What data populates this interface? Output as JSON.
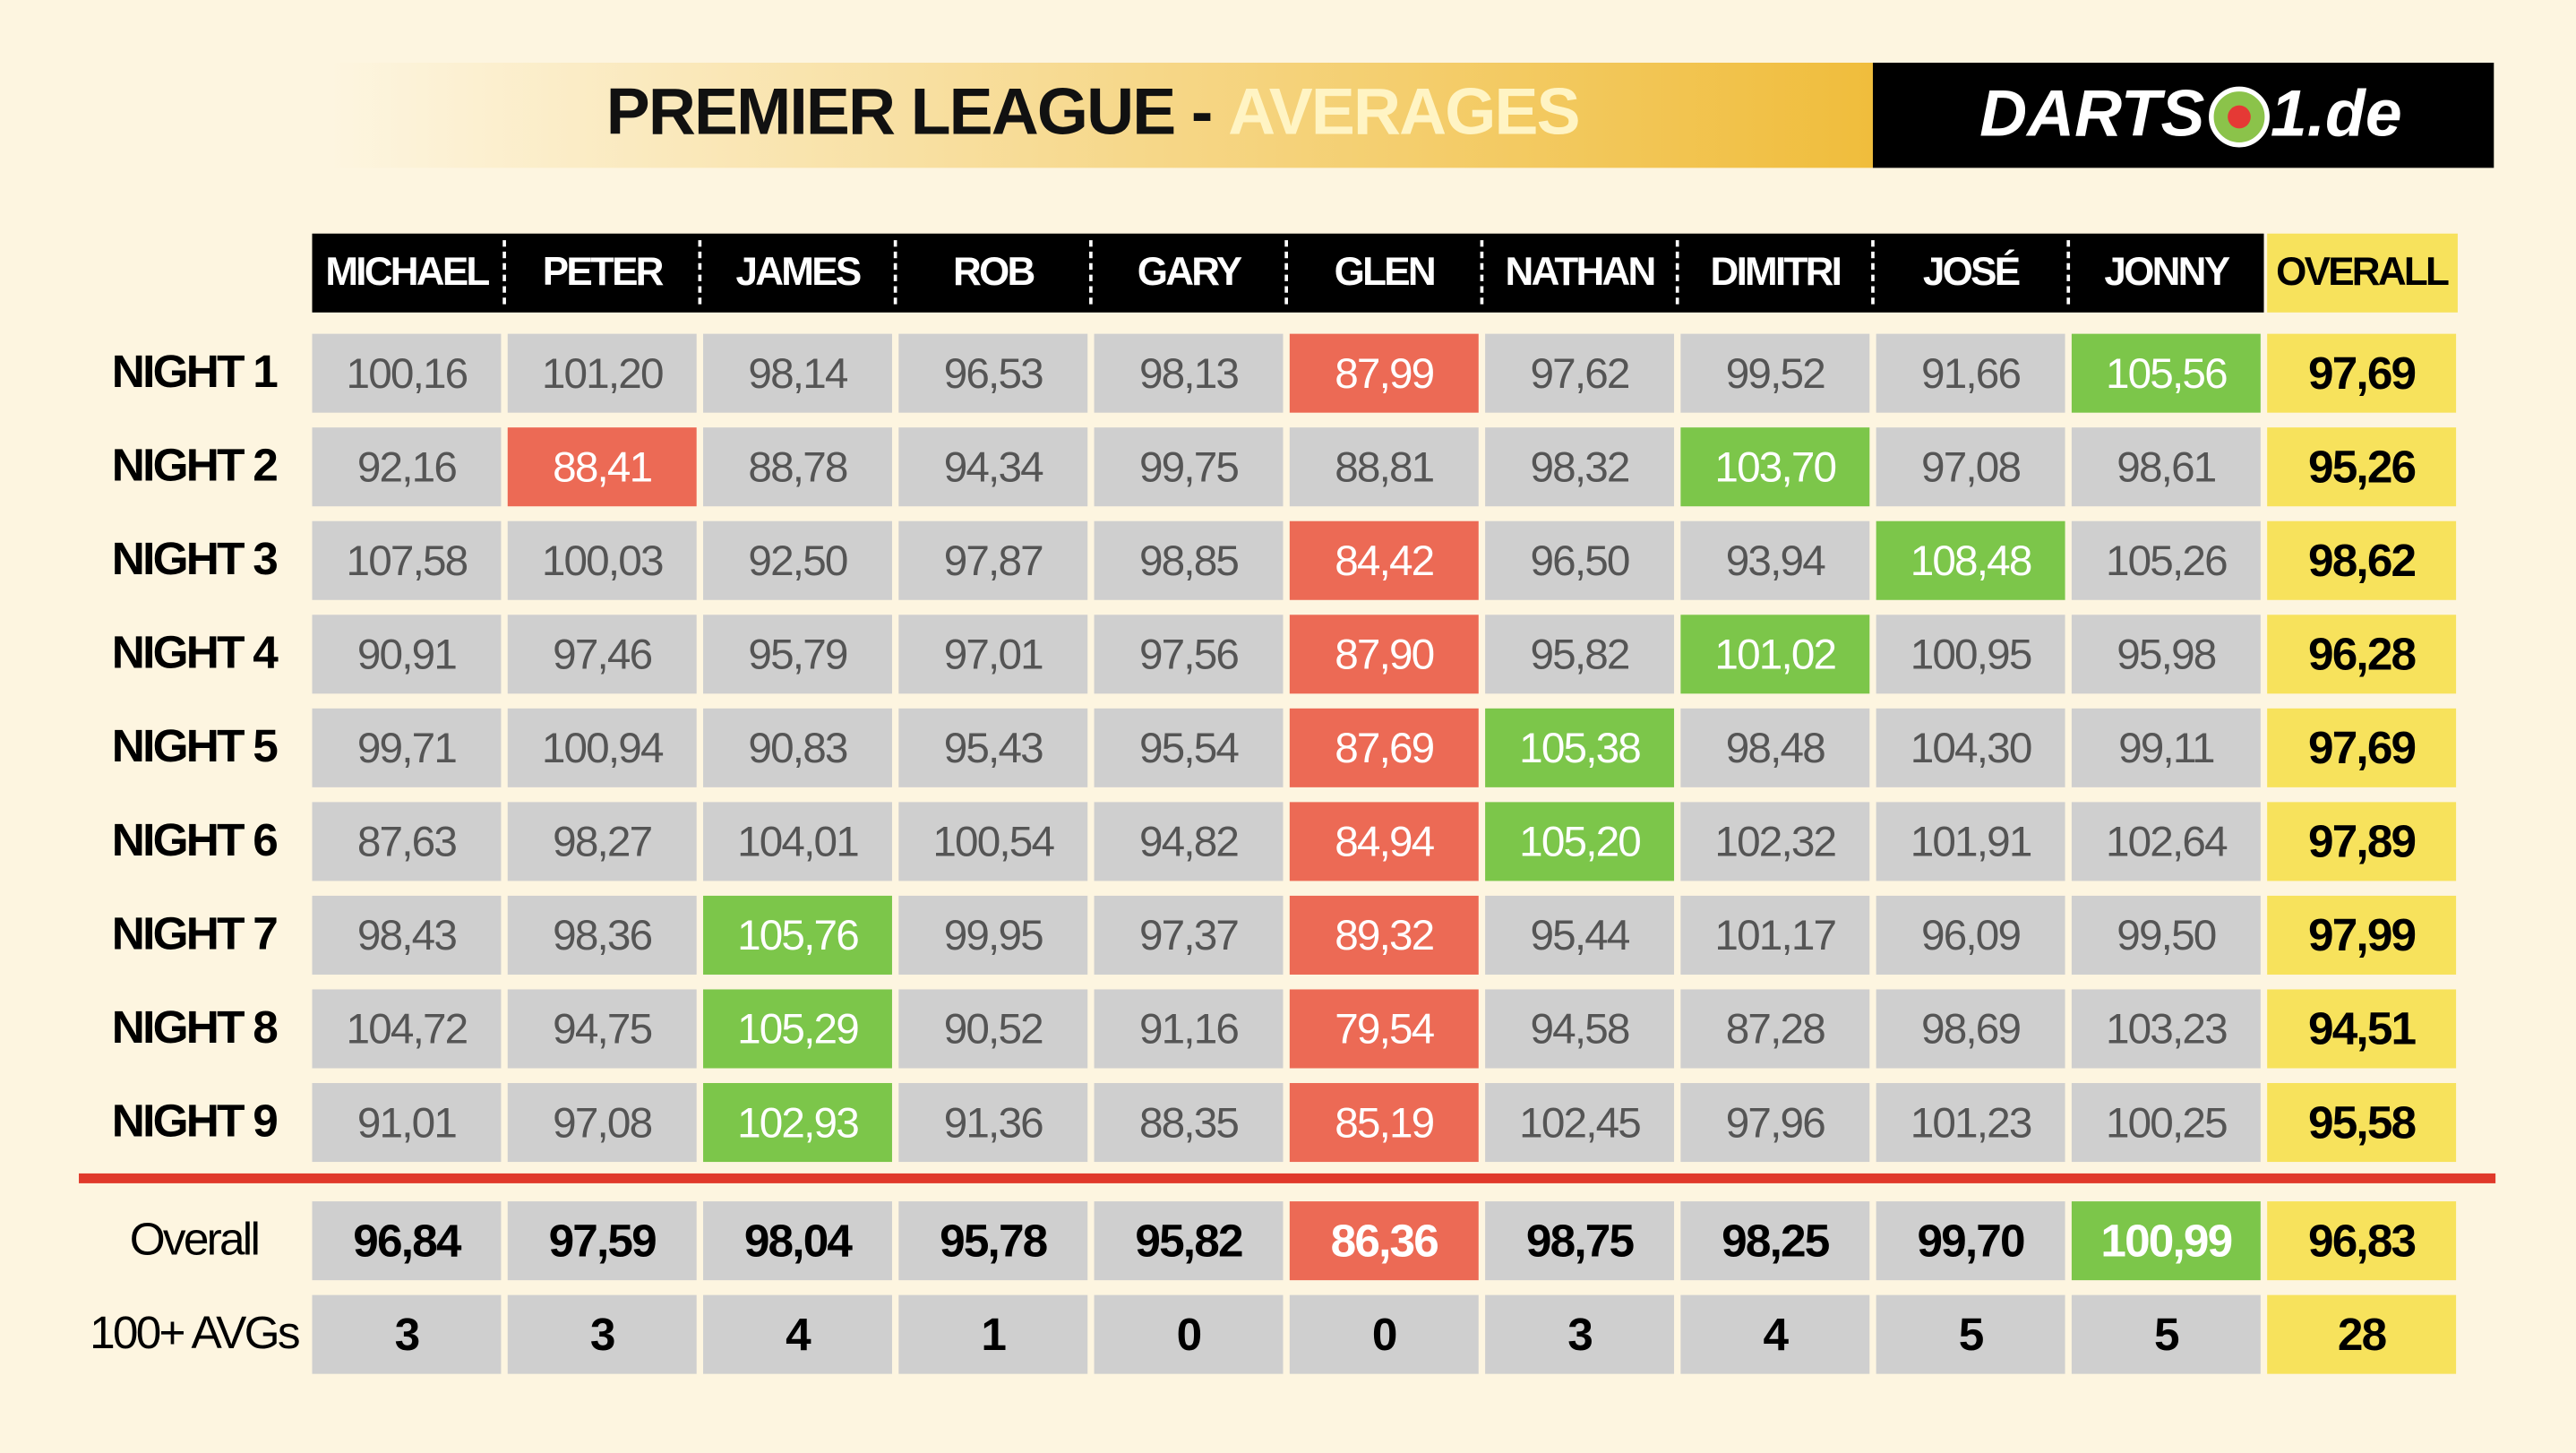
{
  "header": {
    "title": "PREMIER LEAGUE - ",
    "title_highlight": "AVERAGES",
    "logo_left": "DARTS",
    "logo_right": "1.de"
  },
  "table": {
    "columns": [
      "MICHAEL",
      "PETER",
      "JAMES",
      "ROB",
      "GARY",
      "GLEN",
      "NATHAN",
      "DIMITRI",
      "JOSÉ",
      "JONNY",
      "OVERALL"
    ],
    "colors": {
      "cell": "#cfcfcf",
      "best": "#7cc64a",
      "worst": "#ec6a55",
      "overall": "#f7e25c"
    },
    "rows": [
      {
        "label": "NIGHT 1",
        "cells": [
          "100,16",
          "101,20",
          "98,14",
          "96,53",
          "98,13",
          "87,99",
          "97,62",
          "99,52",
          "91,66",
          "105,56",
          "97,69"
        ],
        "worst": 5,
        "best": 9
      },
      {
        "label": "NIGHT 2",
        "cells": [
          "92,16",
          "88,41",
          "88,78",
          "94,34",
          "99,75",
          "88,81",
          "98,32",
          "103,70",
          "97,08",
          "98,61",
          "95,26"
        ],
        "worst": 1,
        "best": 7
      },
      {
        "label": "NIGHT 3",
        "cells": [
          "107,58",
          "100,03",
          "92,50",
          "97,87",
          "98,85",
          "84,42",
          "96,50",
          "93,94",
          "108,48",
          "105,26",
          "98,62"
        ],
        "worst": 5,
        "best": 8
      },
      {
        "label": "NIGHT 4",
        "cells": [
          "90,91",
          "97,46",
          "95,79",
          "97,01",
          "97,56",
          "87,90",
          "95,82",
          "101,02",
          "100,95",
          "95,98",
          "96,28"
        ],
        "worst": 5,
        "best": 7
      },
      {
        "label": "NIGHT 5",
        "cells": [
          "99,71",
          "100,94",
          "90,83",
          "95,43",
          "95,54",
          "87,69",
          "105,38",
          "98,48",
          "104,30",
          "99,11",
          "97,69"
        ],
        "worst": 5,
        "best": 6
      },
      {
        "label": "NIGHT 6",
        "cells": [
          "87,63",
          "98,27",
          "104,01",
          "100,54",
          "94,82",
          "84,94",
          "105,20",
          "102,32",
          "101,91",
          "102,64",
          "97,89"
        ],
        "worst": 5,
        "best": 6
      },
      {
        "label": "NIGHT 7",
        "cells": [
          "98,43",
          "98,36",
          "105,76",
          "99,95",
          "97,37",
          "89,32",
          "95,44",
          "101,17",
          "96,09",
          "99,50",
          "97,99"
        ],
        "worst": 5,
        "best": 2
      },
      {
        "label": "NIGHT 8",
        "cells": [
          "104,72",
          "94,75",
          "105,29",
          "90,52",
          "91,16",
          "79,54",
          "94,58",
          "87,28",
          "98,69",
          "103,23",
          "94,51"
        ],
        "worst": 5,
        "best": 2
      },
      {
        "label": "NIGHT 9",
        "cells": [
          "91,01",
          "97,08",
          "102,93",
          "91,36",
          "88,35",
          "85,19",
          "102,45",
          "97,96",
          "101,23",
          "100,25",
          "95,58"
        ],
        "worst": 5,
        "best": 2
      }
    ],
    "summary": [
      {
        "label": "Overall",
        "cells": [
          "96,84",
          "97,59",
          "98,04",
          "95,78",
          "95,82",
          "86,36",
          "98,75",
          "98,25",
          "99,70",
          "100,99",
          "96,83"
        ],
        "worst": 5,
        "best": 9
      },
      {
        "label": "100+ AVGs",
        "cells": [
          "3",
          "3",
          "4",
          "1",
          "0",
          "0",
          "3",
          "4",
          "5",
          "5",
          "28"
        ]
      }
    ]
  }
}
